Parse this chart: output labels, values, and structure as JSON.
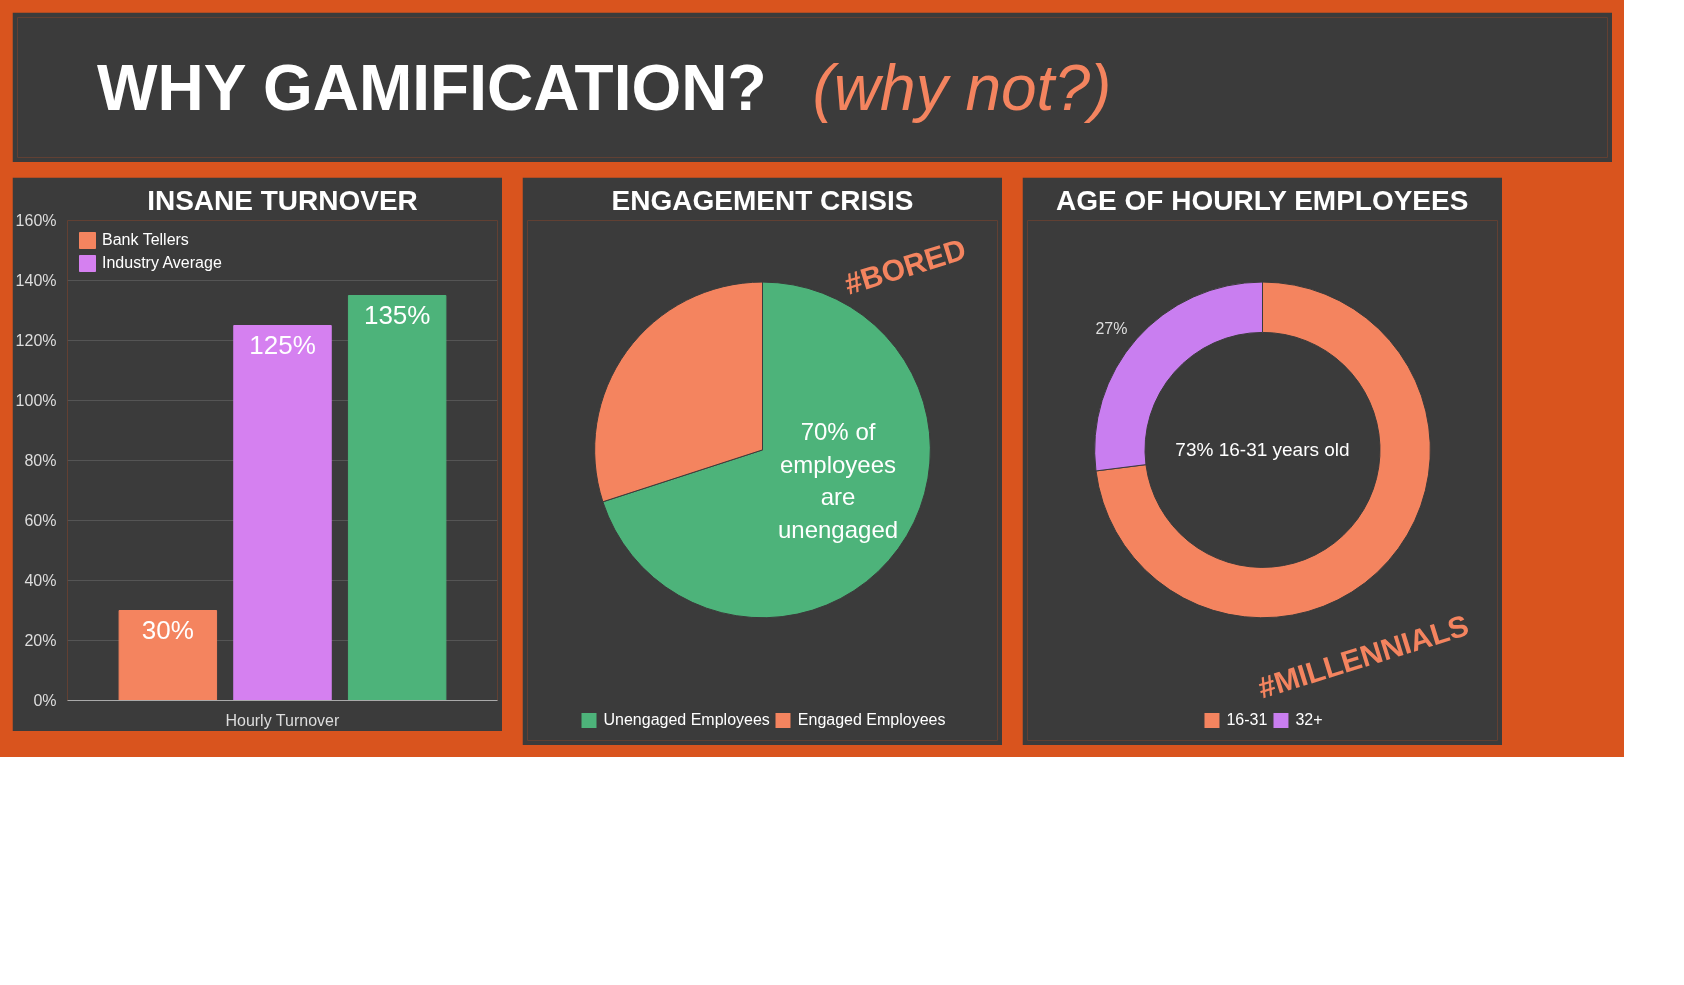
{
  "chart_data": [
    {
      "type": "other",
      "title": "WHY GAMIFICATION?",
      "subtitle": "(why not?)"
    },
    {
      "type": "bar",
      "title": "INSANE TURNOVER",
      "categories": [
        "Hourly Turnover"
      ],
      "series": [
        {
          "name": "Bank Tellers",
          "color": "#f4845f",
          "values": [
            30
          ],
          "value_labels": [
            "30%"
          ]
        },
        {
          "name": "Industry Average",
          "color": "#d580f0",
          "values": [
            125
          ],
          "value_labels": [
            "125%"
          ]
        },
        {
          "color": "#4db37a",
          "values": [
            135
          ],
          "value_labels": [
            "135%"
          ]
        }
      ],
      "ylim": [
        0,
        160
      ],
      "yticks": [
        {
          "value": 0,
          "label": "0%"
        },
        {
          "value": 20,
          "label": "20%"
        },
        {
          "value": 40,
          "label": "40%"
        },
        {
          "value": 60,
          "label": "60%"
        },
        {
          "value": 80,
          "label": "80%"
        },
        {
          "value": 100,
          "label": "100%"
        },
        {
          "value": 120,
          "label": "120%"
        },
        {
          "value": 140,
          "label": "140%"
        },
        {
          "value": 160,
          "label": "160%"
        }
      ],
      "grid": "y",
      "legend": "top left"
    },
    {
      "type": "pie",
      "title": "ENGAGEMENT CRISIS",
      "categories": [
        "Unengaged Employees",
        "Engaged Employees"
      ],
      "values": [
        70,
        30
      ],
      "colors": [
        "#4db37a",
        "#f4845f"
      ],
      "legend": "bottom",
      "annotations": [
        "70% of employees are unengaged",
        "#BORED"
      ]
    },
    {
      "type": "donut",
      "title": "AGE OF HOURLY EMPLOYEES",
      "categories": [
        "16-31",
        "32+"
      ],
      "values": [
        73,
        27
      ],
      "colors": [
        "#f4845f",
        "#c97ef0"
      ],
      "value_labels": [
        null,
        "27%"
      ],
      "legend": "bottom",
      "annotations": [
        "73% 16-31 years old",
        "#MILLENNIALS"
      ]
    }
  ]
}
